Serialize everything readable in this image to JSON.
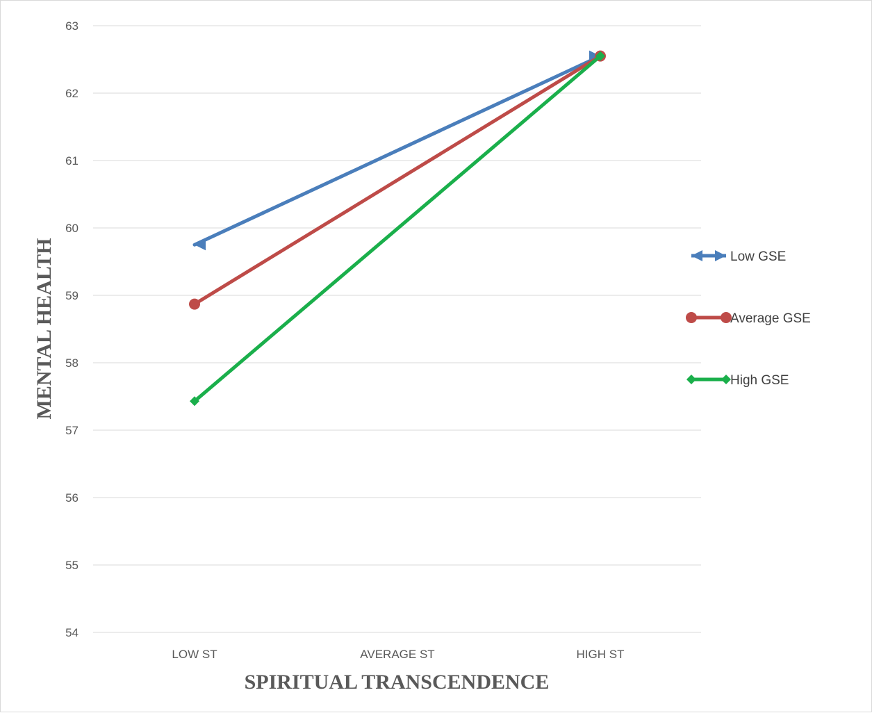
{
  "chart_data": {
    "type": "line",
    "categories": [
      "LOW ST",
      "AVERAGE ST",
      "HIGH ST"
    ],
    "xlabel": "SPIRITUAL TRANSCENDENCE",
    "ylabel": "MENTAL HEALTH",
    "ylim": [
      54,
      63
    ],
    "yticks": [
      "54",
      "55",
      "56",
      "57",
      "58",
      "59",
      "60",
      "61",
      "62",
      "63"
    ],
    "grid": true,
    "legend_position": "right",
    "series": [
      {
        "name": "Low GSE",
        "color": "#4a7ebb",
        "marker": "arrow",
        "values": [
          59.75,
          null,
          62.55
        ]
      },
      {
        "name": "Average GSE",
        "color": "#be4b48",
        "marker": "circle",
        "values": [
          58.87,
          null,
          62.55
        ]
      },
      {
        "name": "High GSE",
        "color": "#1aaf4b",
        "marker": "diamond",
        "values": [
          57.43,
          null,
          62.55
        ]
      }
    ]
  }
}
